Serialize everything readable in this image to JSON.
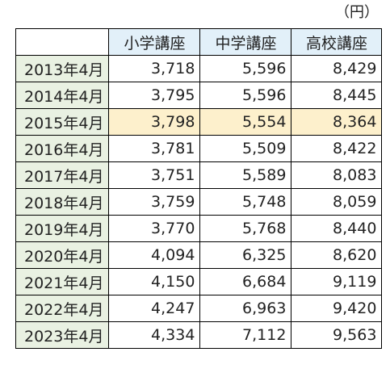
{
  "unit_label": "（円）",
  "table": {
    "headers": [
      "",
      "小学講座",
      "中学講座",
      "高校講座"
    ],
    "rows": [
      {
        "label": "2013年4月",
        "values": [
          "3,718",
          "5,596",
          "8,429"
        ],
        "highlight": false
      },
      {
        "label": "2014年4月",
        "values": [
          "3,795",
          "5,596",
          "8,445"
        ],
        "highlight": false
      },
      {
        "label": "2015年4月",
        "values": [
          "3,798",
          "5,554",
          "8,364"
        ],
        "highlight": true
      },
      {
        "label": "2016年4月",
        "values": [
          "3,781",
          "5,509",
          "8,422"
        ],
        "highlight": false
      },
      {
        "label": "2017年4月",
        "values": [
          "3,751",
          "5,589",
          "8,083"
        ],
        "highlight": false
      },
      {
        "label": "2018年4月",
        "values": [
          "3,759",
          "5,748",
          "8,059"
        ],
        "highlight": false
      },
      {
        "label": "2019年4月",
        "values": [
          "3,770",
          "5,768",
          "8,440"
        ],
        "highlight": false
      },
      {
        "label": "2020年4月",
        "values": [
          "4,094",
          "6,325",
          "8,620"
        ],
        "highlight": false
      },
      {
        "label": "2021年4月",
        "values": [
          "4,150",
          "6,684",
          "9,119"
        ],
        "highlight": false
      },
      {
        "label": "2022年4月",
        "values": [
          "4,247",
          "6,963",
          "9,420"
        ],
        "highlight": false
      },
      {
        "label": "2023年4月",
        "values": [
          "4,334",
          "7,112",
          "9,563"
        ],
        "highlight": false
      }
    ]
  },
  "colors": {
    "header_bg": "#e2f0f9",
    "row_label_bg": "#e9f1e2",
    "highlight_bg": "#fdf0cc",
    "border": "#000000"
  }
}
